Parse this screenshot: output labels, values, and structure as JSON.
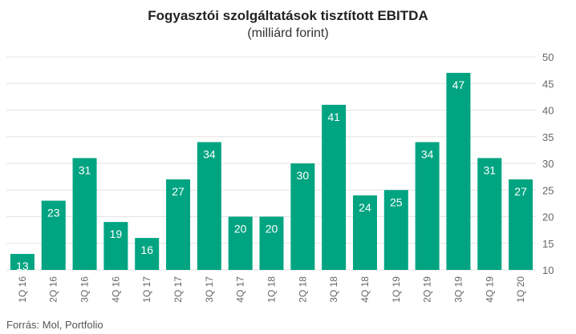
{
  "chart_data": {
    "type": "bar",
    "title": "Fogyasztói szolgáltatások tisztított EBITDA",
    "subtitle": "(milliárd forint)",
    "source": "Forrás: Mol, Portfolio",
    "categories": [
      "1Q 16",
      "2Q 16",
      "3Q 16",
      "4Q 16",
      "1Q 17",
      "2Q 17",
      "3Q 17",
      "4Q 17",
      "1Q 18",
      "2Q 18",
      "3Q 18",
      "4Q 18",
      "1Q 19",
      "2Q 19",
      "3Q 19",
      "4Q 19",
      "1Q 20"
    ],
    "values": [
      13,
      23,
      31,
      19,
      16,
      27,
      34,
      20,
      20,
      30,
      41,
      24,
      25,
      34,
      47,
      31,
      27
    ],
    "value_labels": [
      "13",
      "23",
      "31",
      "19",
      "16",
      "27",
      "34",
      "20",
      "20",
      "30",
      "41",
      "24",
      "25",
      "34",
      "47",
      "31",
      "27"
    ],
    "ylim": [
      10,
      50
    ],
    "yticks": [
      "10",
      "15",
      "20",
      "25",
      "30",
      "35",
      "40",
      "45",
      "50"
    ],
    "y_axis_position": "right",
    "grid": true,
    "bar_color": "#00a481",
    "grid_color": "#e3e3e3"
  }
}
